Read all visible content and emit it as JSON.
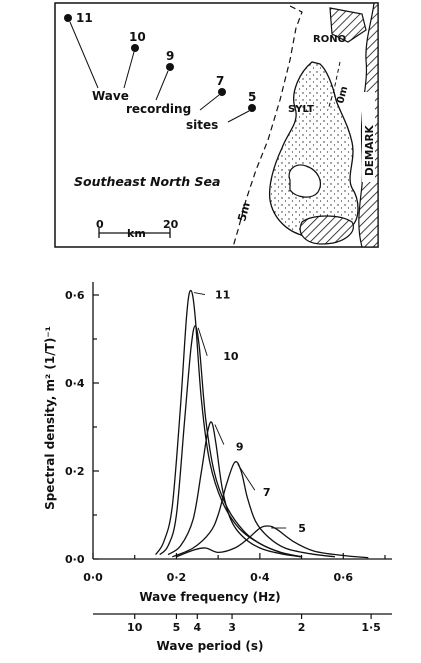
{
  "map": {
    "sites": [
      {
        "label": "11"
      },
      {
        "label": "10"
      },
      {
        "label": "9"
      },
      {
        "label": "7"
      },
      {
        "label": "5"
      }
    ],
    "caption_words": [
      "Wave",
      "recording",
      "sites"
    ],
    "sea_label": "Southeast North Sea",
    "scale_start": "0",
    "scale_unit": "km",
    "scale_end": "20",
    "depth_5m": "5m",
    "depth_0m": "0m",
    "place_rono": "RONO",
    "place_sylt": "SYLT",
    "place_demark": "DEMARK"
  },
  "chart_data": {
    "type": "line",
    "xlabel": "Wave frequency (Hz)",
    "ylabel": "Spectral density, m² (1/T)⁻¹",
    "xlim": [
      0.0,
      0.7
    ],
    "ylim": [
      0.0,
      0.62
    ],
    "x_ticks": [
      "0·0",
      "0·2",
      "0·4",
      "0·6"
    ],
    "x_tick_values": [
      0.0,
      0.2,
      0.4,
      0.6
    ],
    "y_ticks": [
      "0·0",
      "0·2",
      "0·4",
      "0·6"
    ],
    "y_tick_values": [
      0.0,
      0.2,
      0.4,
      0.6
    ],
    "secondary_axis": {
      "label": "Wave period (s)",
      "ticks": [
        "10",
        "5",
        "4",
        "3",
        "2",
        "1·5"
      ],
      "tick_periods": [
        10,
        5,
        4,
        3,
        2,
        1.5
      ]
    },
    "series": [
      {
        "name": "11",
        "x": [
          0.15,
          0.17,
          0.19,
          0.21,
          0.225,
          0.235,
          0.245,
          0.26,
          0.28,
          0.31,
          0.35,
          0.4,
          0.45,
          0.5
        ],
        "y": [
          0.01,
          0.04,
          0.12,
          0.35,
          0.56,
          0.61,
          0.55,
          0.36,
          0.22,
          0.13,
          0.07,
          0.035,
          0.015,
          0.005
        ]
      },
      {
        "name": "10",
        "x": [
          0.16,
          0.18,
          0.2,
          0.22,
          0.235,
          0.245,
          0.255,
          0.27,
          0.29,
          0.32,
          0.36,
          0.4,
          0.45,
          0.5
        ],
        "y": [
          0.01,
          0.03,
          0.1,
          0.32,
          0.48,
          0.53,
          0.48,
          0.32,
          0.2,
          0.12,
          0.065,
          0.035,
          0.015,
          0.005
        ]
      },
      {
        "name": "9",
        "x": [
          0.18,
          0.21,
          0.24,
          0.26,
          0.275,
          0.285,
          0.295,
          0.31,
          0.33,
          0.36,
          0.4,
          0.45,
          0.5
        ],
        "y": [
          0.01,
          0.03,
          0.09,
          0.2,
          0.29,
          0.31,
          0.26,
          0.16,
          0.09,
          0.05,
          0.025,
          0.012,
          0.005
        ]
      },
      {
        "name": "7",
        "x": [
          0.19,
          0.24,
          0.28,
          0.3,
          0.32,
          0.34,
          0.355,
          0.37,
          0.39,
          0.42,
          0.46,
          0.52,
          0.58
        ],
        "y": [
          0.005,
          0.025,
          0.06,
          0.1,
          0.17,
          0.22,
          0.2,
          0.14,
          0.085,
          0.05,
          0.025,
          0.012,
          0.005
        ]
      },
      {
        "name": "5",
        "x": [
          0.2,
          0.24,
          0.27,
          0.3,
          0.34,
          0.37,
          0.4,
          0.42,
          0.44,
          0.48,
          0.53,
          0.6,
          0.66
        ],
        "y": [
          0.005,
          0.02,
          0.025,
          0.015,
          0.025,
          0.045,
          0.07,
          0.075,
          0.068,
          0.04,
          0.018,
          0.008,
          0.003
        ]
      }
    ]
  }
}
